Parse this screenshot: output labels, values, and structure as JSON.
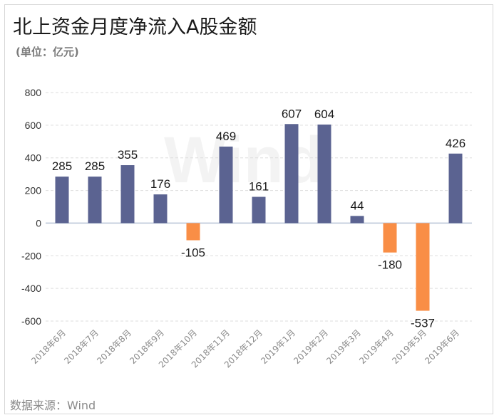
{
  "header": {
    "title": "北上资金月度净流入A股金额",
    "subtitle": "(单位：亿元)"
  },
  "footer": {
    "source": "数据来源：Wind"
  },
  "watermark": "Wind",
  "chart_data": {
    "type": "bar",
    "title": "北上资金月度净流入A股金额",
    "subtitle": "(单位：亿元)",
    "categories": [
      "2018年6月",
      "2018年7月",
      "2018年8月",
      "2018年9月",
      "2018年10月",
      "2018年11月",
      "2018年12月",
      "2019年1月",
      "2019年2月",
      "2019年3月",
      "2019年4月",
      "2019年5月",
      "2019年6月"
    ],
    "values": [
      285,
      285,
      355,
      176,
      -105,
      469,
      161,
      607,
      604,
      44,
      -180,
      -537,
      426
    ],
    "ylim": [
      -600,
      800
    ],
    "yticks": [
      -600,
      -400,
      -200,
      0,
      200,
      400,
      600,
      800
    ],
    "grid": true,
    "legend": "none",
    "colors": {
      "positive": "#5b6391",
      "negative": "#f98e46",
      "grid": "#dddddd",
      "axis": "#b8c3d6"
    }
  }
}
